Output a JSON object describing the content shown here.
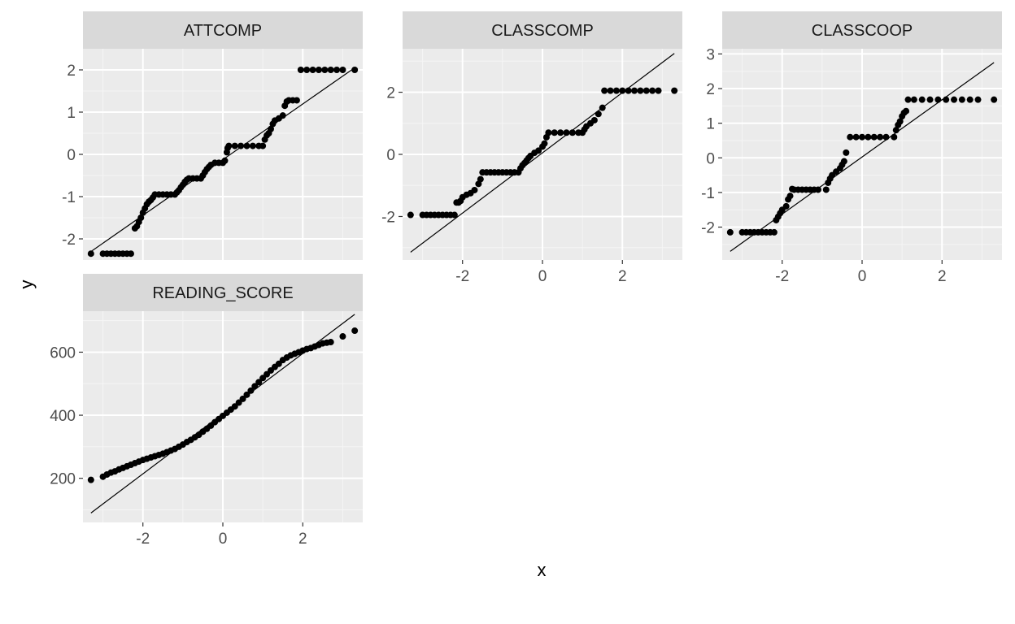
{
  "chart_data": {
    "type": "scatter",
    "subtype": "qq-plot-faceted",
    "xlabel": "x",
    "ylabel": "y",
    "colors": {
      "panel_background": "#ebebeb",
      "strip_background": "#d9d9d9",
      "grid_major": "#ffffff",
      "point": "#000000",
      "reference_line": "#000000"
    },
    "facets": [
      {
        "name": "ATTCOMP",
        "xlim": [
          -3.5,
          3.5
        ],
        "ylim": [
          -2.5,
          2.5
        ],
        "x_ticks": [
          -2,
          0,
          2
        ],
        "y_ticks": [
          -2,
          -1,
          0,
          1,
          2
        ],
        "y_tick_labels": [
          "-2",
          "-1",
          "0",
          "1",
          "2"
        ],
        "show_x_axis": false,
        "line": [
          [
            -3.3,
            -2.3
          ],
          [
            3.3,
            2.05
          ]
        ],
        "points": [
          [
            -3.3,
            -2.35
          ],
          [
            -3.0,
            -2.35
          ],
          [
            -2.9,
            -2.35
          ],
          [
            -2.8,
            -2.35
          ],
          [
            -2.7,
            -2.35
          ],
          [
            -2.6,
            -2.35
          ],
          [
            -2.5,
            -2.35
          ],
          [
            -2.4,
            -2.35
          ],
          [
            -2.3,
            -2.35
          ],
          [
            -2.2,
            -1.75
          ],
          [
            -2.15,
            -1.7
          ],
          [
            -2.1,
            -1.6
          ],
          [
            -2.05,
            -1.5
          ],
          [
            -2.0,
            -1.38
          ],
          [
            -1.95,
            -1.28
          ],
          [
            -1.9,
            -1.18
          ],
          [
            -1.85,
            -1.12
          ],
          [
            -1.8,
            -1.08
          ],
          [
            -1.75,
            -1.02
          ],
          [
            -1.7,
            -0.95
          ],
          [
            -1.6,
            -0.95
          ],
          [
            -1.5,
            -0.95
          ],
          [
            -1.4,
            -0.95
          ],
          [
            -1.3,
            -0.95
          ],
          [
            -1.2,
            -0.95
          ],
          [
            -1.15,
            -0.9
          ],
          [
            -1.1,
            -0.85
          ],
          [
            -1.05,
            -0.78
          ],
          [
            -1.0,
            -0.72
          ],
          [
            -0.95,
            -0.65
          ],
          [
            -0.9,
            -0.6
          ],
          [
            -0.85,
            -0.57
          ],
          [
            -0.75,
            -0.57
          ],
          [
            -0.65,
            -0.57
          ],
          [
            -0.55,
            -0.57
          ],
          [
            -0.5,
            -0.5
          ],
          [
            -0.45,
            -0.42
          ],
          [
            -0.4,
            -0.35
          ],
          [
            -0.35,
            -0.3
          ],
          [
            -0.3,
            -0.25
          ],
          [
            -0.2,
            -0.2
          ],
          [
            -0.1,
            -0.2
          ],
          [
            0.0,
            -0.2
          ],
          [
            0.05,
            -0.15
          ],
          [
            0.1,
            0.05
          ],
          [
            0.12,
            0.15
          ],
          [
            0.15,
            0.2
          ],
          [
            0.3,
            0.2
          ],
          [
            0.45,
            0.2
          ],
          [
            0.6,
            0.2
          ],
          [
            0.75,
            0.2
          ],
          [
            0.9,
            0.2
          ],
          [
            1.0,
            0.2
          ],
          [
            1.05,
            0.35
          ],
          [
            1.1,
            0.45
          ],
          [
            1.15,
            0.5
          ],
          [
            1.2,
            0.6
          ],
          [
            1.25,
            0.72
          ],
          [
            1.3,
            0.8
          ],
          [
            1.4,
            0.85
          ],
          [
            1.5,
            0.92
          ],
          [
            1.55,
            1.15
          ],
          [
            1.6,
            1.25
          ],
          [
            1.65,
            1.28
          ],
          [
            1.75,
            1.28
          ],
          [
            1.85,
            1.28
          ],
          [
            1.95,
            2.0
          ],
          [
            2.1,
            2.0
          ],
          [
            2.25,
            2.0
          ],
          [
            2.4,
            2.0
          ],
          [
            2.55,
            2.0
          ],
          [
            2.7,
            2.0
          ],
          [
            2.85,
            2.0
          ],
          [
            3.0,
            2.0
          ],
          [
            3.3,
            2.0
          ]
        ]
      },
      {
        "name": "CLASSCOMP",
        "xlim": [
          -3.5,
          3.5
        ],
        "ylim": [
          -3.4,
          3.4
        ],
        "x_ticks": [
          -2,
          0,
          2
        ],
        "x_tick_labels": [
          "-2",
          "0",
          "2"
        ],
        "y_ticks": [
          -2,
          0,
          2
        ],
        "y_tick_labels": [
          "-2",
          "0",
          "2"
        ],
        "show_x_axis": true,
        "line": [
          [
            -3.3,
            -3.15
          ],
          [
            3.3,
            3.25
          ]
        ],
        "points": [
          [
            -3.3,
            -1.95
          ],
          [
            -3.0,
            -1.95
          ],
          [
            -2.9,
            -1.95
          ],
          [
            -2.8,
            -1.95
          ],
          [
            -2.7,
            -1.95
          ],
          [
            -2.6,
            -1.95
          ],
          [
            -2.5,
            -1.95
          ],
          [
            -2.4,
            -1.95
          ],
          [
            -2.3,
            -1.95
          ],
          [
            -2.2,
            -1.95
          ],
          [
            -2.15,
            -1.55
          ],
          [
            -2.1,
            -1.55
          ],
          [
            -2.05,
            -1.5
          ],
          [
            -2.0,
            -1.38
          ],
          [
            -1.9,
            -1.3
          ],
          [
            -1.8,
            -1.25
          ],
          [
            -1.7,
            -1.15
          ],
          [
            -1.6,
            -0.95
          ],
          [
            -1.55,
            -0.8
          ],
          [
            -1.5,
            -0.58
          ],
          [
            -1.4,
            -0.58
          ],
          [
            -1.3,
            -0.58
          ],
          [
            -1.2,
            -0.58
          ],
          [
            -1.1,
            -0.58
          ],
          [
            -1.0,
            -0.58
          ],
          [
            -0.9,
            -0.58
          ],
          [
            -0.8,
            -0.58
          ],
          [
            -0.7,
            -0.58
          ],
          [
            -0.6,
            -0.58
          ],
          [
            -0.55,
            -0.45
          ],
          [
            -0.5,
            -0.35
          ],
          [
            -0.45,
            -0.28
          ],
          [
            -0.4,
            -0.2
          ],
          [
            -0.35,
            -0.12
          ],
          [
            -0.3,
            -0.05
          ],
          [
            -0.2,
            0.05
          ],
          [
            -0.1,
            0.12
          ],
          [
            0.0,
            0.25
          ],
          [
            0.05,
            0.35
          ],
          [
            0.1,
            0.55
          ],
          [
            0.15,
            0.7
          ],
          [
            0.3,
            0.7
          ],
          [
            0.45,
            0.7
          ],
          [
            0.6,
            0.7
          ],
          [
            0.75,
            0.7
          ],
          [
            0.9,
            0.7
          ],
          [
            1.0,
            0.7
          ],
          [
            1.05,
            0.8
          ],
          [
            1.1,
            0.9
          ],
          [
            1.2,
            1.0
          ],
          [
            1.3,
            1.1
          ],
          [
            1.4,
            1.3
          ],
          [
            1.5,
            1.5
          ],
          [
            1.55,
            2.05
          ],
          [
            1.7,
            2.05
          ],
          [
            1.85,
            2.05
          ],
          [
            2.0,
            2.05
          ],
          [
            2.15,
            2.05
          ],
          [
            2.3,
            2.05
          ],
          [
            2.45,
            2.05
          ],
          [
            2.6,
            2.05
          ],
          [
            2.75,
            2.05
          ],
          [
            2.9,
            2.05
          ],
          [
            3.3,
            2.05
          ]
        ]
      },
      {
        "name": "CLASSCOOP",
        "xlim": [
          -3.5,
          3.5
        ],
        "ylim": [
          -2.95,
          3.15
        ],
        "x_ticks": [
          -2,
          0,
          2
        ],
        "x_tick_labels": [
          "-2",
          "0",
          "2"
        ],
        "y_ticks": [
          -2,
          -1,
          0,
          1,
          2,
          3
        ],
        "y_tick_labels": [
          "-2",
          "-1",
          "0",
          "1",
          "2",
          "3"
        ],
        "show_x_axis": true,
        "line": [
          [
            -3.3,
            -2.7
          ],
          [
            3.3,
            2.75
          ]
        ],
        "points": [
          [
            -3.3,
            -2.15
          ],
          [
            -3.0,
            -2.15
          ],
          [
            -2.9,
            -2.15
          ],
          [
            -2.8,
            -2.15
          ],
          [
            -2.7,
            -2.15
          ],
          [
            -2.6,
            -2.15
          ],
          [
            -2.5,
            -2.15
          ],
          [
            -2.4,
            -2.15
          ],
          [
            -2.3,
            -2.15
          ],
          [
            -2.2,
            -2.15
          ],
          [
            -2.15,
            -1.8
          ],
          [
            -2.1,
            -1.7
          ],
          [
            -2.05,
            -1.6
          ],
          [
            -2.0,
            -1.5
          ],
          [
            -1.9,
            -1.4
          ],
          [
            -1.85,
            -1.2
          ],
          [
            -1.8,
            -1.1
          ],
          [
            -1.75,
            -0.9
          ],
          [
            -1.7,
            -0.92
          ],
          [
            -1.6,
            -0.92
          ],
          [
            -1.5,
            -0.92
          ],
          [
            -1.4,
            -0.92
          ],
          [
            -1.3,
            -0.92
          ],
          [
            -1.2,
            -0.92
          ],
          [
            -1.1,
            -0.92
          ],
          [
            -0.9,
            -0.92
          ],
          [
            -0.85,
            -0.72
          ],
          [
            -0.8,
            -0.6
          ],
          [
            -0.75,
            -0.5
          ],
          [
            -0.65,
            -0.4
          ],
          [
            -0.55,
            -0.3
          ],
          [
            -0.5,
            -0.2
          ],
          [
            -0.45,
            -0.1
          ],
          [
            -0.4,
            0.15
          ],
          [
            -0.3,
            0.6
          ],
          [
            -0.15,
            0.6
          ],
          [
            0.0,
            0.6
          ],
          [
            0.15,
            0.6
          ],
          [
            0.3,
            0.6
          ],
          [
            0.45,
            0.6
          ],
          [
            0.6,
            0.6
          ],
          [
            0.8,
            0.6
          ],
          [
            0.85,
            0.8
          ],
          [
            0.9,
            0.95
          ],
          [
            0.95,
            1.05
          ],
          [
            1.0,
            1.2
          ],
          [
            1.05,
            1.3
          ],
          [
            1.1,
            1.35
          ],
          [
            1.15,
            1.68
          ],
          [
            1.3,
            1.68
          ],
          [
            1.5,
            1.68
          ],
          [
            1.7,
            1.68
          ],
          [
            1.9,
            1.68
          ],
          [
            2.1,
            1.68
          ],
          [
            2.3,
            1.68
          ],
          [
            2.5,
            1.68
          ],
          [
            2.7,
            1.68
          ],
          [
            2.9,
            1.68
          ],
          [
            3.3,
            1.68
          ]
        ]
      },
      {
        "name": "READING_SCORE",
        "xlim": [
          -3.5,
          3.5
        ],
        "ylim": [
          60,
          730
        ],
        "x_ticks": [
          -2,
          0,
          2
        ],
        "x_tick_labels": [
          "-2",
          "0",
          "2"
        ],
        "y_ticks": [
          200,
          400,
          600
        ],
        "y_tick_labels": [
          "200",
          "400",
          "600"
        ],
        "show_x_axis": true,
        "line": [
          [
            -3.3,
            90
          ],
          [
            3.3,
            720
          ]
        ],
        "points": [
          [
            -3.3,
            195
          ],
          [
            -3.0,
            205
          ],
          [
            -2.9,
            212
          ],
          [
            -2.8,
            218
          ],
          [
            -2.7,
            222
          ],
          [
            -2.6,
            228
          ],
          [
            -2.5,
            233
          ],
          [
            -2.4,
            238
          ],
          [
            -2.3,
            243
          ],
          [
            -2.2,
            248
          ],
          [
            -2.1,
            253
          ],
          [
            -2.0,
            258
          ],
          [
            -1.9,
            262
          ],
          [
            -1.8,
            266
          ],
          [
            -1.7,
            270
          ],
          [
            -1.6,
            274
          ],
          [
            -1.5,
            278
          ],
          [
            -1.4,
            283
          ],
          [
            -1.3,
            288
          ],
          [
            -1.2,
            293
          ],
          [
            -1.1,
            300
          ],
          [
            -1.0,
            307
          ],
          [
            -0.9,
            315
          ],
          [
            -0.8,
            322
          ],
          [
            -0.7,
            330
          ],
          [
            -0.6,
            338
          ],
          [
            -0.5,
            348
          ],
          [
            -0.4,
            357
          ],
          [
            -0.3,
            367
          ],
          [
            -0.2,
            378
          ],
          [
            -0.1,
            388
          ],
          [
            0.0,
            398
          ],
          [
            0.1,
            408
          ],
          [
            0.2,
            418
          ],
          [
            0.3,
            428
          ],
          [
            0.4,
            440
          ],
          [
            0.5,
            452
          ],
          [
            0.6,
            465
          ],
          [
            0.7,
            478
          ],
          [
            0.8,
            492
          ],
          [
            0.9,
            505
          ],
          [
            1.0,
            518
          ],
          [
            1.1,
            530
          ],
          [
            1.2,
            542
          ],
          [
            1.3,
            553
          ],
          [
            1.4,
            563
          ],
          [
            1.5,
            575
          ],
          [
            1.6,
            583
          ],
          [
            1.7,
            590
          ],
          [
            1.8,
            595
          ],
          [
            1.9,
            600
          ],
          [
            2.0,
            605
          ],
          [
            2.1,
            610
          ],
          [
            2.2,
            613
          ],
          [
            2.3,
            618
          ],
          [
            2.4,
            623
          ],
          [
            2.5,
            628
          ],
          [
            2.6,
            630
          ],
          [
            2.7,
            632
          ],
          [
            3.0,
            650
          ],
          [
            3.3,
            668
          ]
        ]
      }
    ]
  }
}
